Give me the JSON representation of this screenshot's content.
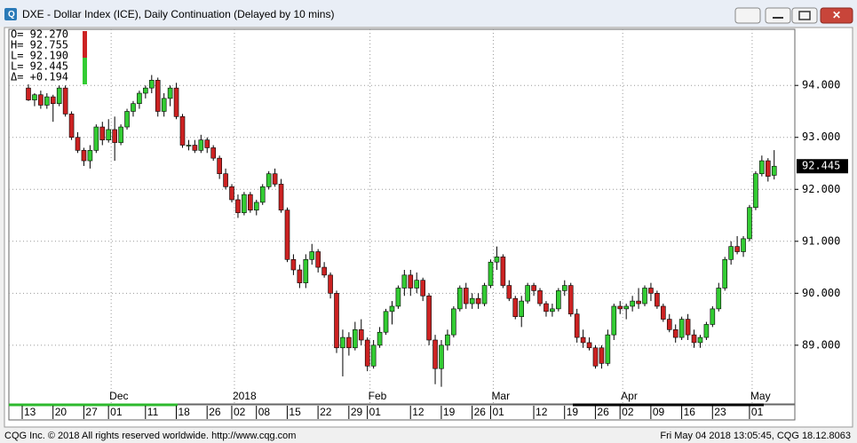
{
  "window": {
    "title": "DXE - Dollar Index (ICE), Daily Continuation (Delayed by 10 mins)"
  },
  "footer": {
    "left": "CQG Inc. © 2018 All rights reserved worldwide. http://www.cqg.com",
    "right": "Fri May 04 2018 13:05:45, CQG 18.12.8063"
  },
  "chart_data": {
    "type": "candlestick",
    "info_lines": [
      "O= 92.270",
      "H= 92.755",
      "L= 92.190",
      "L= 92.445",
      "Δ= +0.194"
    ],
    "up_color": "#33cc33",
    "down_color": "#cc2222",
    "grid": true,
    "last_price": 92.445,
    "ylim": [
      87.87,
      95.08
    ],
    "yticks": [
      {
        "value": 94,
        "label": "94.000"
      },
      {
        "value": 93,
        "label": "93.000"
      },
      {
        "value": 92,
        "label": "92.000"
      },
      {
        "value": 91,
        "label": "91.000"
      },
      {
        "value": 90,
        "label": "90.000"
      },
      {
        "value": 89,
        "label": "89.000"
      }
    ],
    "categories": [
      "13",
      null,
      null,
      null,
      null,
      "20",
      null,
      null,
      null,
      null,
      "27",
      null,
      null,
      null,
      "01",
      null,
      null,
      null,
      null,
      null,
      "11",
      null,
      null,
      null,
      null,
      "18",
      null,
      null,
      null,
      null,
      "26",
      null,
      null,
      null,
      "02",
      null,
      null,
      null,
      "08",
      null,
      null,
      null,
      null,
      "15",
      null,
      null,
      null,
      null,
      "22",
      null,
      null,
      null,
      null,
      "29",
      null,
      null,
      "01",
      null,
      null,
      null,
      null,
      null,
      null,
      "12",
      null,
      null,
      null,
      null,
      "19",
      null,
      null,
      null,
      null,
      "26",
      null,
      null,
      "01",
      null,
      null,
      null,
      null,
      null,
      null,
      "12",
      null,
      null,
      null,
      null,
      "19",
      null,
      null,
      null,
      null,
      "26",
      null,
      null,
      null,
      "02",
      null,
      null,
      null,
      null,
      "09",
      null,
      null,
      null,
      null,
      "16",
      null,
      null,
      null,
      null,
      "23",
      null,
      null,
      null,
      null,
      null,
      "01",
      null,
      null,
      null
    ],
    "month_labels": [
      null,
      null,
      null,
      null,
      null,
      null,
      null,
      null,
      null,
      null,
      null,
      null,
      null,
      null,
      "Dec",
      null,
      null,
      null,
      null,
      null,
      null,
      null,
      null,
      null,
      null,
      null,
      null,
      null,
      null,
      null,
      null,
      null,
      null,
      null,
      "2018",
      null,
      null,
      null,
      null,
      null,
      null,
      null,
      null,
      null,
      null,
      null,
      null,
      null,
      null,
      null,
      null,
      null,
      null,
      null,
      null,
      null,
      "Feb",
      null,
      null,
      null,
      null,
      null,
      null,
      null,
      null,
      null,
      null,
      null,
      null,
      null,
      null,
      null,
      null,
      null,
      null,
      null,
      "Mar",
      null,
      null,
      null,
      null,
      null,
      null,
      null,
      null,
      null,
      null,
      null,
      null,
      null,
      null,
      null,
      null,
      null,
      null,
      null,
      null,
      "Apr",
      null,
      null,
      null,
      null,
      null,
      null,
      null,
      null,
      null,
      null,
      null,
      null,
      null,
      null,
      null,
      null,
      null,
      null,
      null,
      null,
      "May",
      null,
      null,
      null
    ],
    "open": [
      93.95,
      93.72,
      93.82,
      93.62,
      93.78,
      93.65,
      93.95,
      93.45,
      93.0,
      92.75,
      92.55,
      92.75,
      93.2,
      92.95,
      93.15,
      92.9,
      93.2,
      93.5,
      93.65,
      93.85,
      93.95,
      94.1,
      93.5,
      93.75,
      93.95,
      93.4,
      92.85,
      92.85,
      92.75,
      92.95,
      92.8,
      92.6,
      92.3,
      92.05,
      91.8,
      91.55,
      91.9,
      91.6,
      91.75,
      92.05,
      92.3,
      92.1,
      91.6,
      90.65,
      90.45,
      90.2,
      90.65,
      90.8,
      90.5,
      90.35,
      90.0,
      88.95,
      89.15,
      88.95,
      89.3,
      89.1,
      88.6,
      89.0,
      89.25,
      89.65,
      89.75,
      90.1,
      90.35,
      90.1,
      90.25,
      89.95,
      89.1,
      88.55,
      89.0,
      89.2,
      89.7,
      90.1,
      89.8,
      89.9,
      89.8,
      90.15,
      90.6,
      90.7,
      90.15,
      89.9,
      89.55,
      89.85,
      90.15,
      90.05,
      89.8,
      89.65,
      89.7,
      90.05,
      90.15,
      89.6,
      89.15,
      89.05,
      88.95,
      88.95,
      88.65,
      89.2,
      89.75,
      89.7,
      89.75,
      89.85,
      89.8,
      90.1,
      90.0,
      89.75,
      89.5,
      89.3,
      89.15,
      89.5,
      89.2,
      89.05,
      89.15,
      89.4,
      89.7,
      90.1,
      90.65,
      90.9,
      90.8,
      91.05,
      91.65,
      92.3,
      92.55,
      92.27
    ],
    "high": [
      94.02,
      93.85,
      93.9,
      93.85,
      93.82,
      94.0,
      94.0,
      93.5,
      93.1,
      92.8,
      92.85,
      93.25,
      93.3,
      93.35,
      93.4,
      93.25,
      93.55,
      93.7,
      93.9,
      94.0,
      94.2,
      94.15,
      93.85,
      94.0,
      94.05,
      93.45,
      92.95,
      92.95,
      93.05,
      93.0,
      92.85,
      92.65,
      92.4,
      92.1,
      91.9,
      91.95,
      91.95,
      91.8,
      92.1,
      92.35,
      92.4,
      92.2,
      91.65,
      90.75,
      90.55,
      90.75,
      90.95,
      90.85,
      90.6,
      90.4,
      90.05,
      89.3,
      89.25,
      89.45,
      89.5,
      89.15,
      89.1,
      89.35,
      89.7,
      89.85,
      90.15,
      90.45,
      90.45,
      90.4,
      90.3,
      90.0,
      89.2,
      89.1,
      89.3,
      89.75,
      90.15,
      90.2,
      90.0,
      90.0,
      90.2,
      90.65,
      90.9,
      90.75,
      90.25,
      89.95,
      89.95,
      90.2,
      90.2,
      90.1,
      89.85,
      89.8,
      90.1,
      90.25,
      90.2,
      89.7,
      89.3,
      89.15,
      89.0,
      89.0,
      89.3,
      89.8,
      89.85,
      89.8,
      89.95,
      90.1,
      90.15,
      90.2,
      90.05,
      89.8,
      89.6,
      89.4,
      89.55,
      89.6,
      89.3,
      89.2,
      89.45,
      89.75,
      90.2,
      90.7,
      91.0,
      91.1,
      91.1,
      91.7,
      92.35,
      92.65,
      92.6,
      92.755
    ],
    "low": [
      93.7,
      93.6,
      93.55,
      93.55,
      93.3,
      93.6,
      93.4,
      92.95,
      92.7,
      92.45,
      92.4,
      92.7,
      92.85,
      92.9,
      92.55,
      92.85,
      93.15,
      93.4,
      93.55,
      93.75,
      93.85,
      93.4,
      93.4,
      93.6,
      93.35,
      92.8,
      92.75,
      92.7,
      92.7,
      92.7,
      92.55,
      92.2,
      92.0,
      91.75,
      91.45,
      91.5,
      91.55,
      91.5,
      91.7,
      92.0,
      92.05,
      91.55,
      90.6,
      90.35,
      90.1,
      90.1,
      90.55,
      90.4,
      90.3,
      89.9,
      88.85,
      88.4,
      88.8,
      88.9,
      89.0,
      88.5,
      88.55,
      88.95,
      89.2,
      89.4,
      89.7,
      89.95,
      89.95,
      90.0,
      89.85,
      89.0,
      88.25,
      88.2,
      88.9,
      89.15,
      89.65,
      89.7,
      89.7,
      89.7,
      89.75,
      90.1,
      90.45,
      90.1,
      89.85,
      89.5,
      89.35,
      89.8,
      89.95,
      89.75,
      89.55,
      89.55,
      89.65,
      89.95,
      89.55,
      89.05,
      88.95,
      88.9,
      88.55,
      88.55,
      88.6,
      89.1,
      89.6,
      89.5,
      89.65,
      89.7,
      89.75,
      89.85,
      89.7,
      89.45,
      89.25,
      89.05,
      89.1,
      89.1,
      88.95,
      88.95,
      89.1,
      89.35,
      89.65,
      90.05,
      90.55,
      90.75,
      90.7,
      91.0,
      91.6,
      92.25,
      92.15,
      92.19
    ],
    "close": [
      93.72,
      93.82,
      93.62,
      93.78,
      93.65,
      93.95,
      93.45,
      93.0,
      92.75,
      92.55,
      92.75,
      93.2,
      92.95,
      93.15,
      92.9,
      93.2,
      93.5,
      93.65,
      93.85,
      93.95,
      94.1,
      93.5,
      93.75,
      93.95,
      93.4,
      92.85,
      92.85,
      92.75,
      92.95,
      92.8,
      92.6,
      92.3,
      92.05,
      91.8,
      91.55,
      91.9,
      91.6,
      91.75,
      92.05,
      92.3,
      92.1,
      91.6,
      90.65,
      90.45,
      90.2,
      90.65,
      90.8,
      90.5,
      90.35,
      90.0,
      88.95,
      89.15,
      88.95,
      89.3,
      89.1,
      88.6,
      89.0,
      89.25,
      89.65,
      89.75,
      90.1,
      90.35,
      90.1,
      90.25,
      89.95,
      89.1,
      88.55,
      89.0,
      89.2,
      89.7,
      90.1,
      89.8,
      89.9,
      89.8,
      90.15,
      90.6,
      90.7,
      90.15,
      89.9,
      89.55,
      89.85,
      90.15,
      90.05,
      89.8,
      89.65,
      89.7,
      90.05,
      90.15,
      89.6,
      89.15,
      89.05,
      88.95,
      88.6,
      88.65,
      89.2,
      89.75,
      89.7,
      89.75,
      89.85,
      89.8,
      90.1,
      90.0,
      89.75,
      89.5,
      89.3,
      89.15,
      89.5,
      89.2,
      89.05,
      89.15,
      89.4,
      89.7,
      90.1,
      90.65,
      90.9,
      90.8,
      91.05,
      91.65,
      92.3,
      92.55,
      92.25,
      92.445
    ]
  }
}
